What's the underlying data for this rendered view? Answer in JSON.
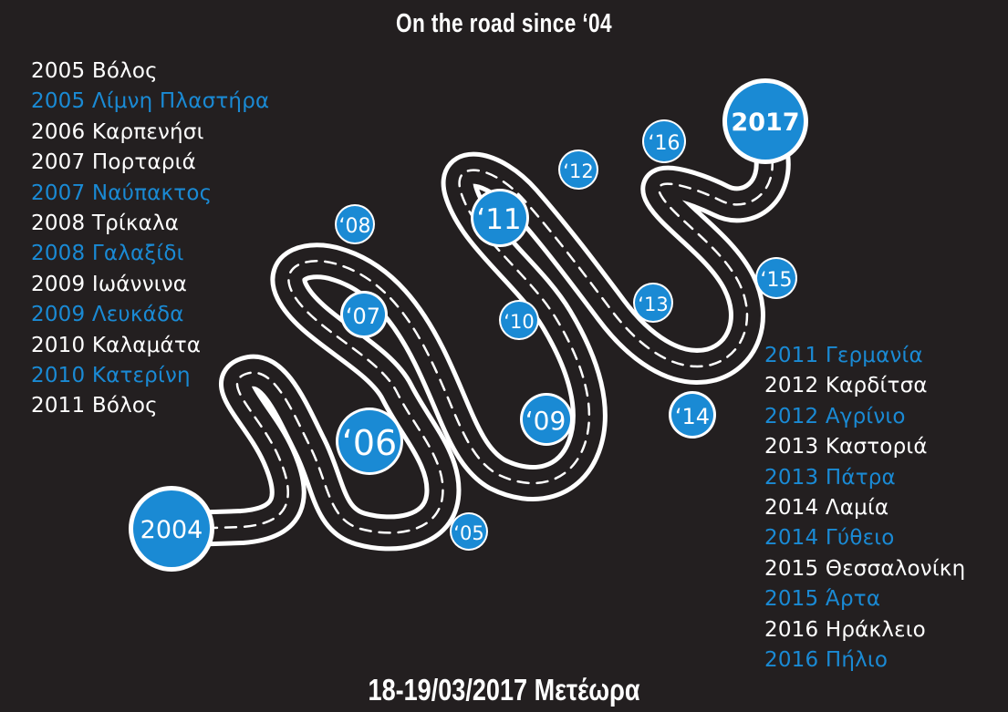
{
  "title": "On  the road since ‘04",
  "footer": "18-19/03/2017 Μετέωρα",
  "colors": {
    "background": "#231f20",
    "accent": "#1a8ad4",
    "text": "#ffffff"
  },
  "milestones": {
    "start": "2004",
    "m05": "‘05",
    "m06": "‘06",
    "m07": "‘07",
    "m08": "‘08",
    "m09": "‘09",
    "m10": "‘10",
    "m11": "‘11",
    "m12": "‘12",
    "m13": "‘13",
    "m14": "‘14",
    "m15": "‘15",
    "m16": "‘16",
    "end": "2017"
  },
  "left_list": [
    "2005 Βόλος",
    "2005 Λίμνη Πλαστήρα",
    "2006 Καρπενήσι",
    "2007 Πορταριά",
    "2007 Ναύπακτος",
    "2008 Τρίκαλα",
    "2008 Γαλαξίδι",
    "2009 Ιωάννινα",
    "2009 Λευκάδα",
    "2010 Καλαμάτα",
    "2010 Κατερίνη",
    "2011 Βόλος"
  ],
  "right_list": [
    "2011 Γερμανία",
    "2012 Καρδίτσα",
    "2012 Αγρίνιο",
    "2013 Καστοριά",
    "2013 Πάτρα",
    "2014 Λαμία",
    "2014 Γύθειο",
    "2015 Θεσσαλονίκη",
    "2015 Άρτα",
    "2016 Ηράκλειο",
    "2016 Πήλιο"
  ]
}
